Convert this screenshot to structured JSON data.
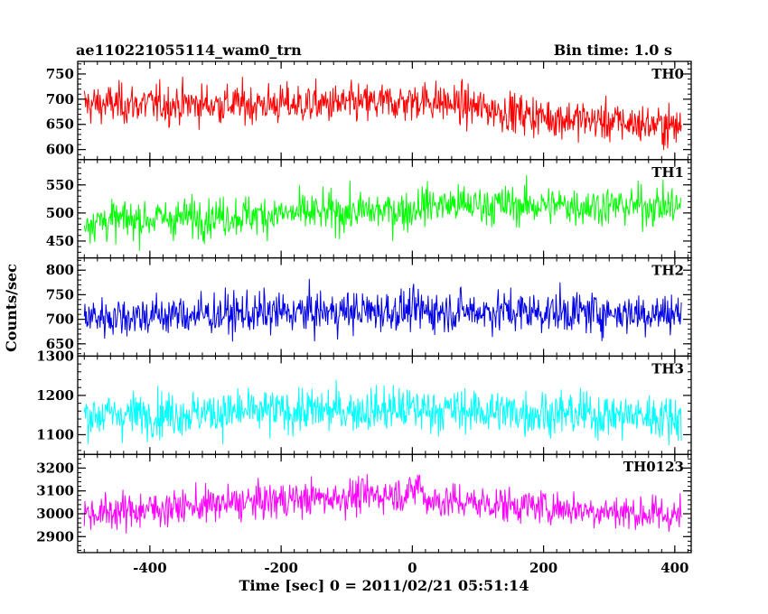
{
  "header": {
    "title": "ae110221055114_wam0_trn",
    "bin_time": "Bin time: 1.0 s"
  },
  "chart_data": {
    "type": "line",
    "xlabel": "Time [sec] 0 = 2011/02/21 05:51:14",
    "ylabel": "Counts/sec",
    "xlim": [
      -510,
      425
    ],
    "x_ticks": [
      -400,
      -200,
      0,
      200,
      400
    ],
    "x_range_data": [
      -500,
      410
    ],
    "panels": [
      {
        "name": "TH0",
        "color": "#ff0000",
        "ylim": [
          580,
          775
        ],
        "y_ticks": [
          600,
          650,
          700,
          750
        ],
        "mean": 690,
        "noise": 28,
        "trend": [
          [
            -500,
            690
          ],
          [
            -100,
            690
          ],
          [
            0,
            695
          ],
          [
            10,
            700
          ],
          [
            200,
            665
          ],
          [
            410,
            645
          ]
        ]
      },
      {
        "name": "TH1",
        "color": "#00ff00",
        "ylim": [
          420,
          595
        ],
        "y_ticks": [
          450,
          500,
          550
        ],
        "mean": 500,
        "noise": 25,
        "trend": [
          [
            -500,
            485
          ],
          [
            -200,
            498
          ],
          [
            0,
            505
          ],
          [
            10,
            515
          ],
          [
            410,
            512
          ]
        ]
      },
      {
        "name": "TH2",
        "color": "#0000e6",
        "ylim": [
          625,
          825
        ],
        "y_ticks": [
          650,
          700,
          750,
          800
        ],
        "mean": 712,
        "noise": 30,
        "trend": [
          [
            -500,
            705
          ],
          [
            0,
            718
          ],
          [
            410,
            712
          ]
        ]
      },
      {
        "name": "TH3",
        "color": "#00ffff",
        "ylim": [
          1050,
          1300
        ],
        "y_ticks": [
          1100,
          1200,
          1300
        ],
        "mean": 1150,
        "noise": 40,
        "trend": [
          [
            -500,
            1150
          ],
          [
            0,
            1165
          ],
          [
            410,
            1145
          ]
        ]
      },
      {
        "name": "TH0123",
        "color": "#ff00ff",
        "ylim": [
          2830,
          3260
        ],
        "y_ticks": [
          2900,
          3000,
          3100,
          3200
        ],
        "mean": 3050,
        "noise": 55,
        "trend": [
          [
            -500,
            3000
          ],
          [
            -200,
            3060
          ],
          [
            0,
            3090
          ],
          [
            10,
            3140
          ],
          [
            20,
            3060
          ],
          [
            200,
            3030
          ],
          [
            410,
            2990
          ]
        ]
      }
    ]
  }
}
